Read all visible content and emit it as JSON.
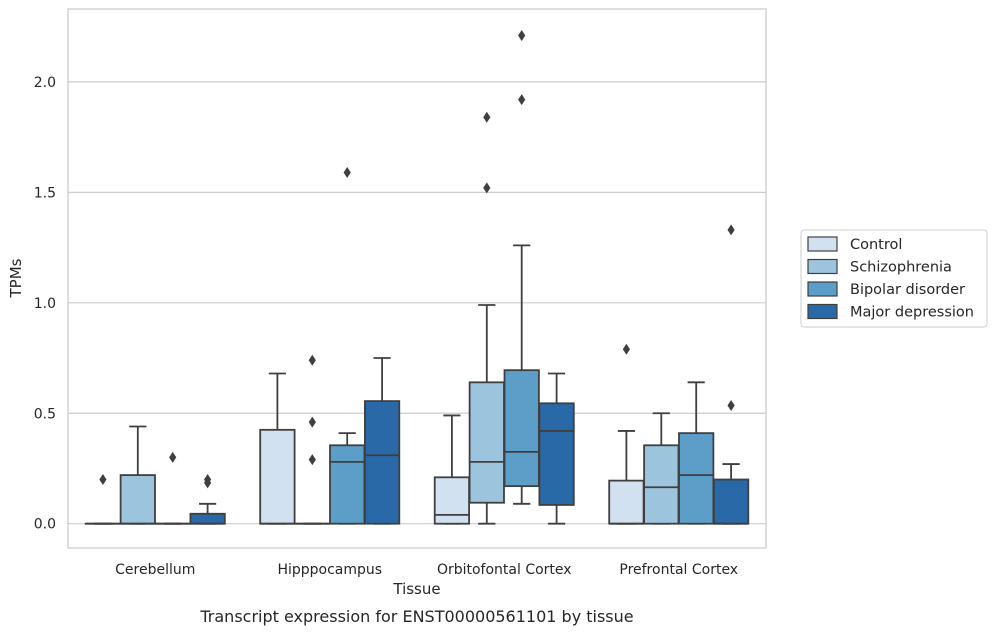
{
  "chart_data": {
    "type": "box",
    "caption": "Transcript expression for ENST00000561101 by tissue",
    "xlabel": "Tissue",
    "ylabel": "TPMs",
    "categories": [
      "Cerebellum",
      "Hipppocampus",
      "Orbitofontal Cortex",
      "Prefrontal Cortex"
    ],
    "ylim": [
      -0.11,
      2.33
    ],
    "yticks": [
      0.0,
      0.5,
      1.0,
      1.5,
      2.0
    ],
    "ytick_labels": [
      "0.0",
      "0.5",
      "1.0",
      "1.5",
      "2.0"
    ],
    "grid": "horizontal",
    "legend_position": "right",
    "series": [
      {
        "name": "Control",
        "color": "#d2e1f0",
        "boxes": [
          {
            "q1": 0.0,
            "median": 0.0,
            "q3": 0.0,
            "whisker_low": 0.0,
            "whisker_high": 0.0,
            "outliers": [
              0.2
            ]
          },
          {
            "q1": 0.0,
            "median": 0.0,
            "q3": 0.425,
            "whisker_low": 0.0,
            "whisker_high": 0.68,
            "outliers": []
          },
          {
            "q1": 0.0,
            "median": 0.04,
            "q3": 0.21,
            "whisker_low": 0.0,
            "whisker_high": 0.49,
            "outliers": []
          },
          {
            "q1": 0.0,
            "median": 0.0,
            "q3": 0.195,
            "whisker_low": 0.0,
            "whisker_high": 0.42,
            "outliers": [
              0.79
            ]
          }
        ]
      },
      {
        "name": "Schizophrenia",
        "color": "#9cc4dc",
        "boxes": [
          {
            "q1": 0.0,
            "median": 0.0,
            "q3": 0.22,
            "whisker_low": 0.0,
            "whisker_high": 0.44,
            "outliers": []
          },
          {
            "q1": 0.0,
            "median": 0.0,
            "q3": 0.0,
            "whisker_low": 0.0,
            "whisker_high": 0.0,
            "outliers": [
              0.29,
              0.46,
              0.74
            ]
          },
          {
            "q1": 0.095,
            "median": 0.28,
            "q3": 0.64,
            "whisker_low": 0.0,
            "whisker_high": 0.99,
            "outliers": [
              1.52,
              1.84
            ]
          },
          {
            "q1": 0.0,
            "median": 0.165,
            "q3": 0.355,
            "whisker_low": 0.0,
            "whisker_high": 0.5,
            "outliers": []
          }
        ]
      },
      {
        "name": "Bipolar disorder",
        "color": "#5c9ec8",
        "boxes": [
          {
            "q1": 0.0,
            "median": 0.0,
            "q3": 0.0,
            "whisker_low": 0.0,
            "whisker_high": 0.0,
            "outliers": [
              0.3
            ]
          },
          {
            "q1": 0.0,
            "median": 0.28,
            "q3": 0.355,
            "whisker_low": 0.0,
            "whisker_high": 0.41,
            "outliers": [
              1.59
            ]
          },
          {
            "q1": 0.17,
            "median": 0.325,
            "q3": 0.695,
            "whisker_low": 0.09,
            "whisker_high": 1.26,
            "outliers": [
              1.92,
              2.21
            ]
          },
          {
            "q1": 0.0,
            "median": 0.22,
            "q3": 0.41,
            "whisker_low": 0.0,
            "whisker_high": 0.64,
            "outliers": []
          }
        ]
      },
      {
        "name": "Major depression",
        "color": "#2a69a8",
        "boxes": [
          {
            "q1": 0.0,
            "median": 0.0,
            "q3": 0.045,
            "whisker_low": 0.0,
            "whisker_high": 0.09,
            "outliers": [
              0.185,
              0.2
            ]
          },
          {
            "q1": 0.0,
            "median": 0.31,
            "q3": 0.555,
            "whisker_low": 0.0,
            "whisker_high": 0.75,
            "outliers": []
          },
          {
            "q1": 0.085,
            "median": 0.42,
            "q3": 0.545,
            "whisker_low": 0.0,
            "whisker_high": 0.68,
            "outliers": []
          },
          {
            "q1": 0.0,
            "median": 0.0,
            "q3": 0.2,
            "whisker_low": 0.0,
            "whisker_high": 0.27,
            "outliers": [
              0.535,
              1.33
            ]
          }
        ]
      }
    ]
  }
}
